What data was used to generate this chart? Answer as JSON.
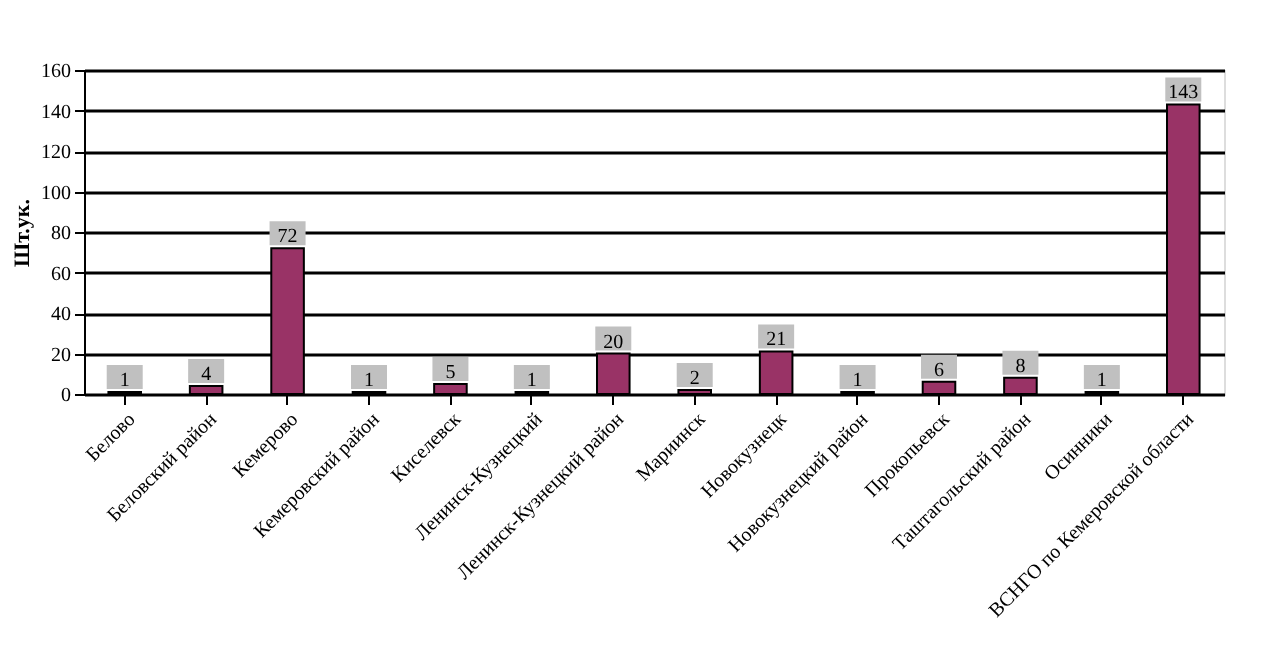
{
  "chart_data": {
    "type": "bar",
    "ylabel": "Шт.ук.",
    "categories": [
      "Белово",
      "Беловский район",
      "Кемерово",
      "Кемеровский район",
      "Киселевск",
      "Ленинск-Кузнецкий",
      "Ленинск-Кузнецкий район",
      "Мариинск",
      "Новокузнецк",
      "Новокузнецкий район",
      "Прокопьевск",
      "Таштагольский район",
      "Осинники",
      "ВСНГО по Кемеровской области"
    ],
    "values": [
      1,
      4,
      72,
      1,
      5,
      1,
      20,
      2,
      21,
      1,
      6,
      8,
      1,
      143
    ],
    "color": "#993366",
    "ylim": [
      0,
      160
    ],
    "yticks": [
      0,
      20,
      40,
      60,
      80,
      100,
      120,
      140,
      160
    ],
    "grid": "y",
    "data_labels": true,
    "legend": false
  }
}
